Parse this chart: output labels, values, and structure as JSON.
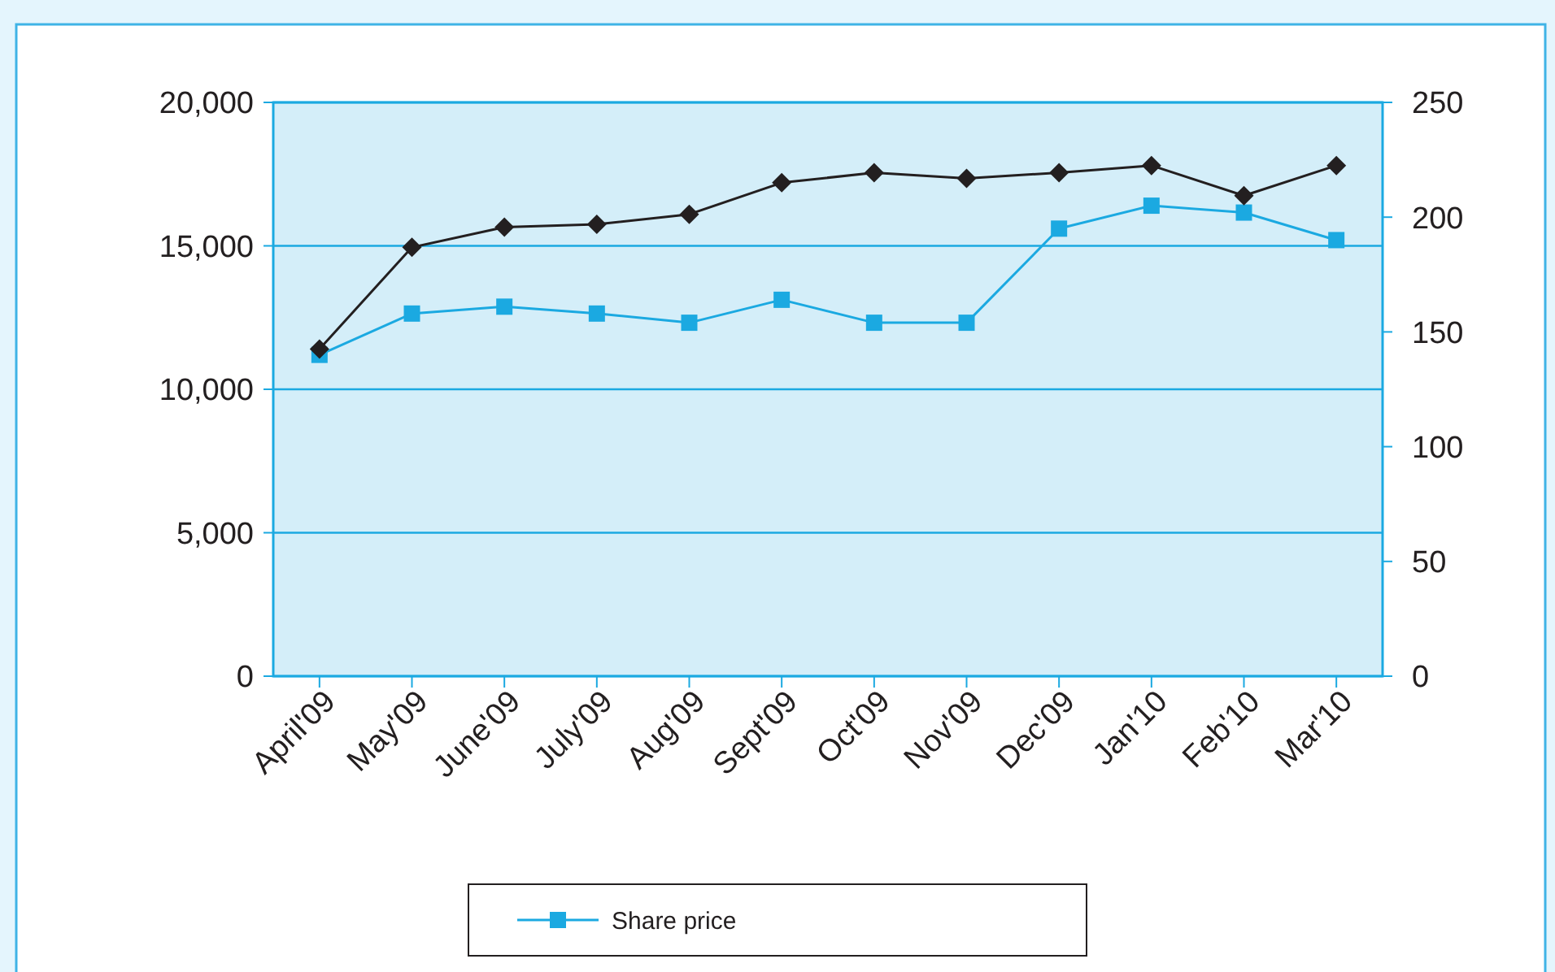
{
  "chart_data": {
    "type": "line",
    "categories": [
      "April'09",
      "May'09",
      "June'09",
      "July'09",
      "Aug'09",
      "Sept'09",
      "Oct'09",
      "Nov'09",
      "Dec'09",
      "Jan'10",
      "Feb'10",
      "Mar'10"
    ],
    "series": [
      {
        "color": "#231f20",
        "marker": "diamond",
        "values": [
          11400,
          14950,
          15650,
          15750,
          16100,
          17200,
          17550,
          17350,
          17550,
          17800,
          16750,
          17800
        ]
      },
      {
        "name": "Share price",
        "color": "#1ba9e1",
        "marker": "square",
        "axis": "y2",
        "values": [
          140,
          158,
          161,
          158,
          154,
          164,
          154,
          154,
          195,
          205,
          202,
          190
        ]
      }
    ],
    "ylim": [
      0,
      20000
    ],
    "yticks": [
      {
        "value": 0,
        "label": "0"
      },
      {
        "value": 5000,
        "label": "5,000"
      },
      {
        "value": 10000,
        "label": "10,000"
      },
      {
        "value": 15000,
        "label": "15,000"
      },
      {
        "value": 20000,
        "label": "20,000"
      }
    ],
    "y2lim": [
      0,
      250
    ],
    "y2ticks": [
      0,
      50,
      100,
      150,
      200,
      250
    ],
    "grid": "y",
    "legend": "bottom"
  }
}
